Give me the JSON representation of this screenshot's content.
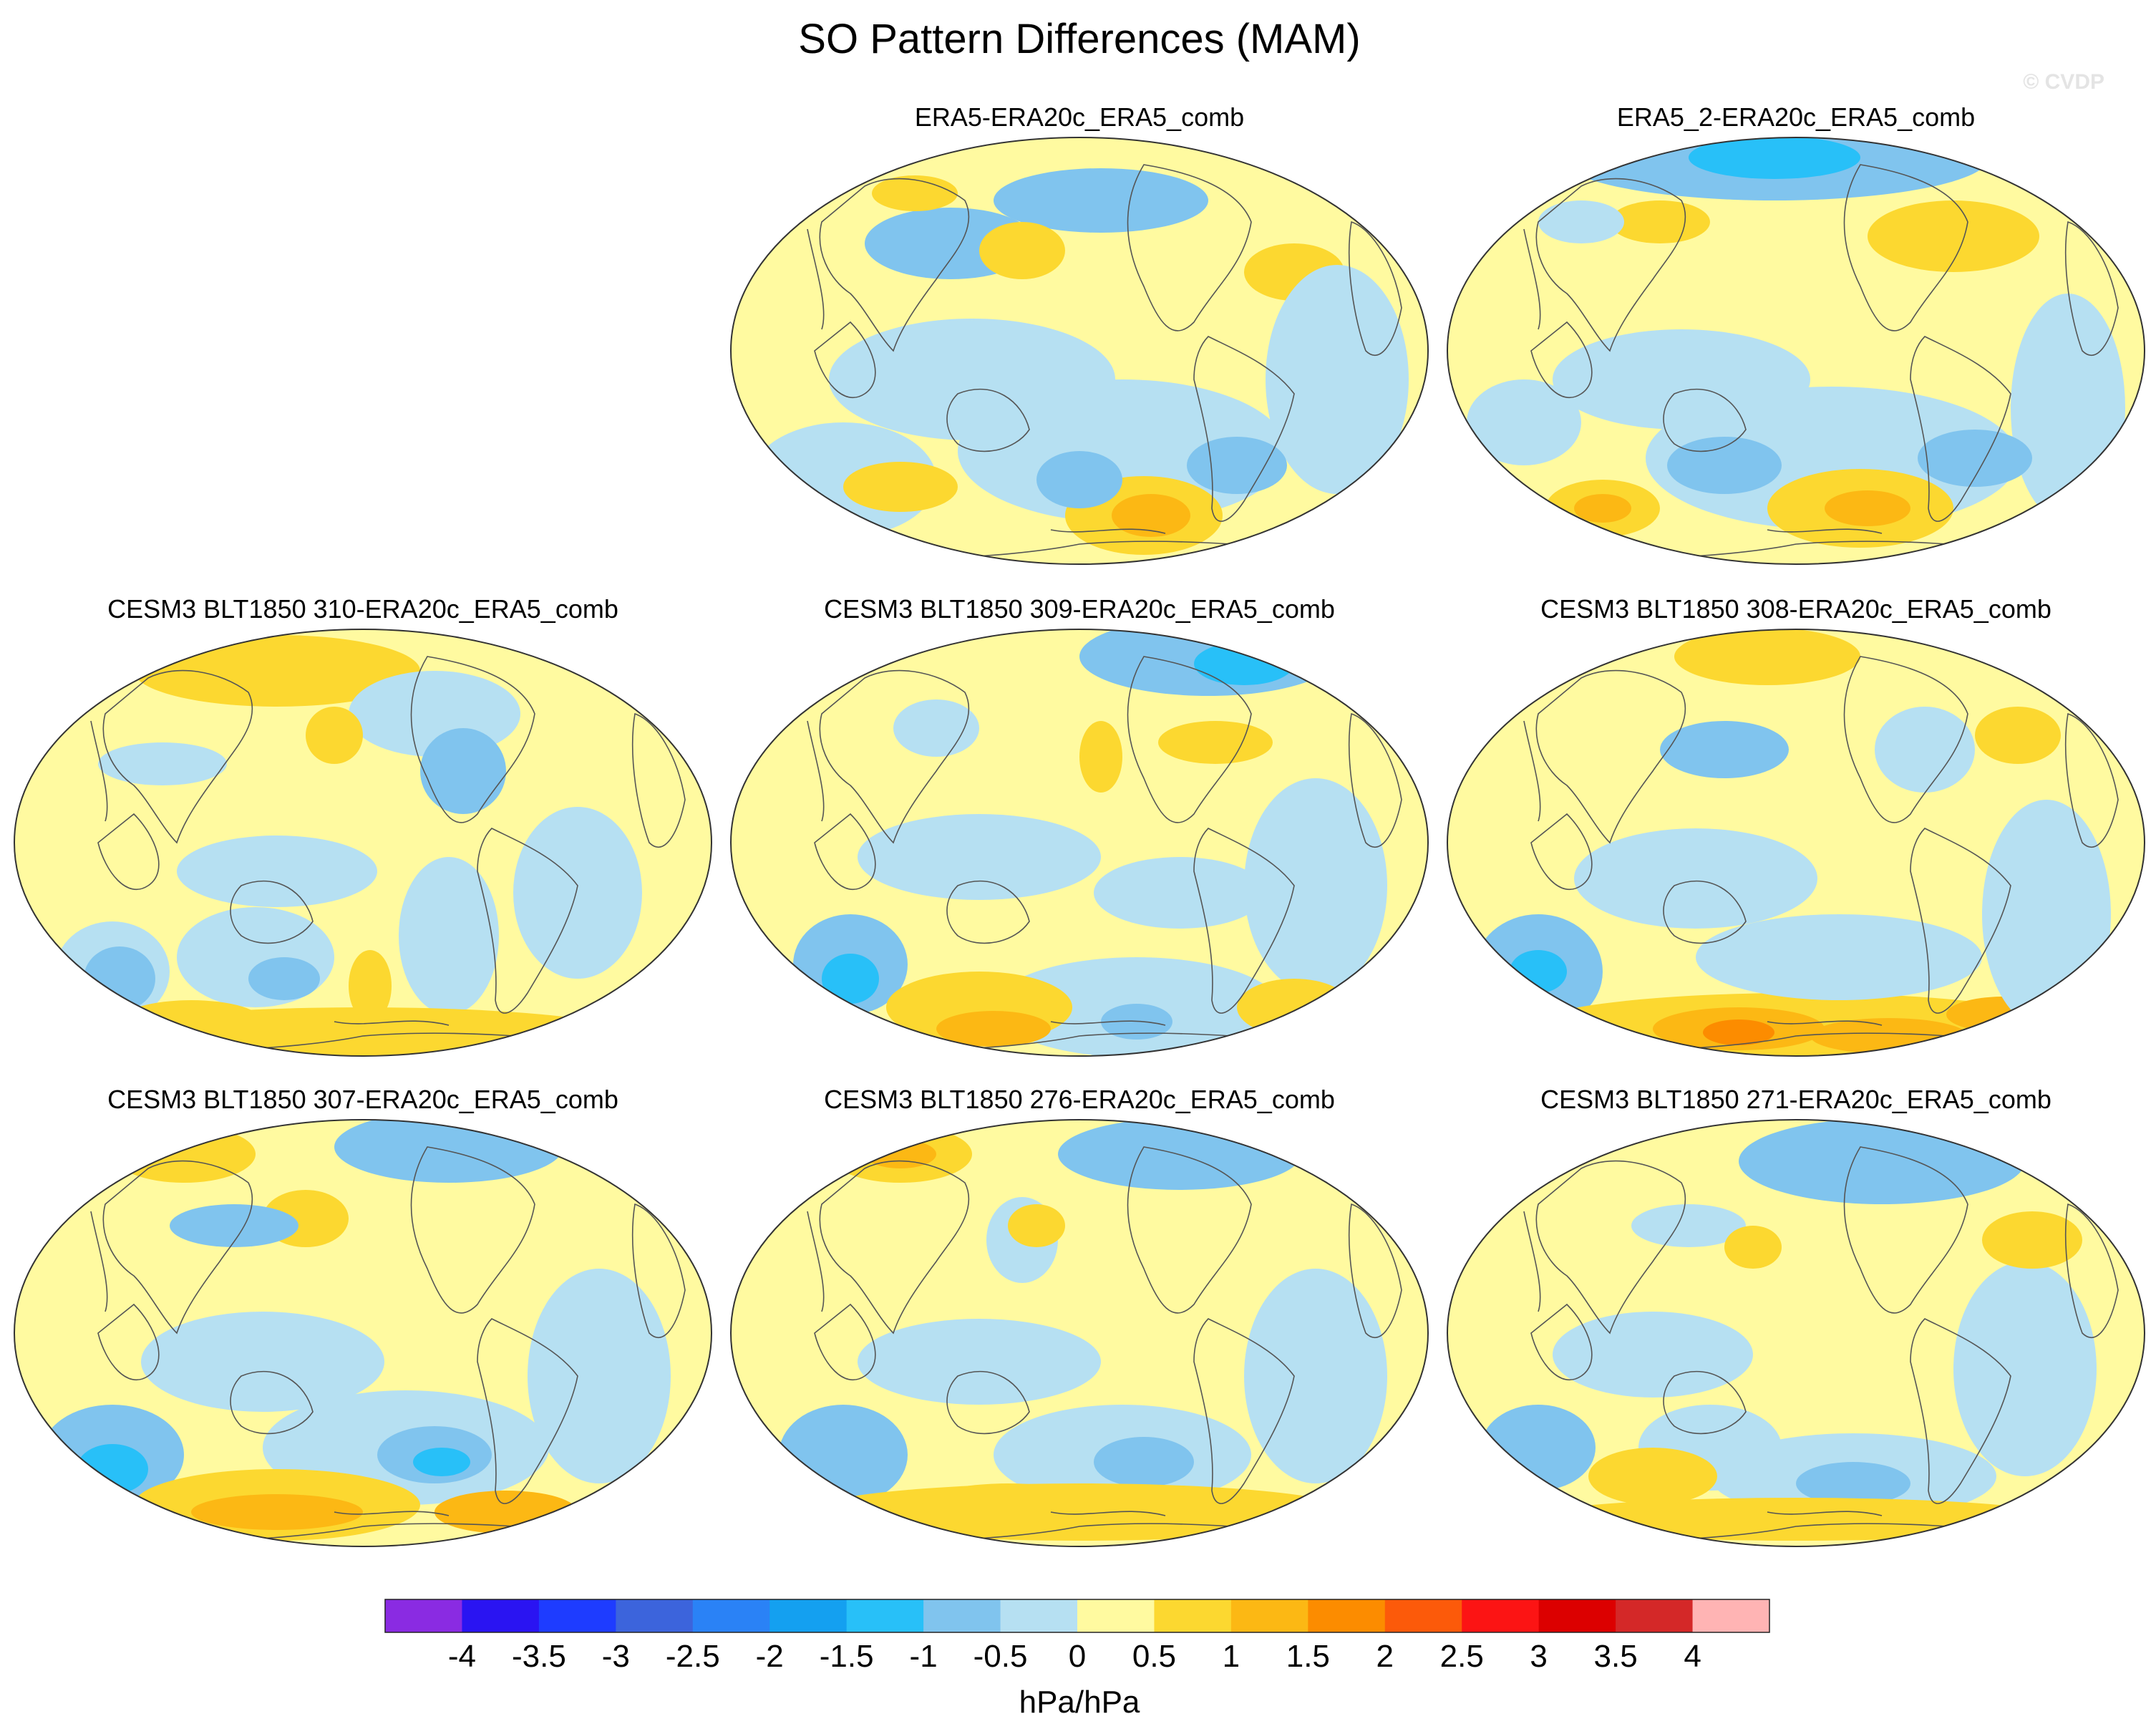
{
  "figure": {
    "title": "SO Pattern Differences (MAM)",
    "watermark": "© CVDP"
  },
  "panels": [
    {
      "id": "era5",
      "title": "ERA5-ERA20c_ERA5_comb"
    },
    {
      "id": "era5_2",
      "title": "ERA5_2-ERA20c_ERA5_comb"
    },
    {
      "id": "m310",
      "title": "CESM3 BLT1850 310-ERA20c_ERA5_comb"
    },
    {
      "id": "m309",
      "title": "CESM3 BLT1850 309-ERA20c_ERA5_comb"
    },
    {
      "id": "m308",
      "title": "CESM3 BLT1850 308-ERA20c_ERA5_comb"
    },
    {
      "id": "m307",
      "title": "CESM3 BLT1850 307-ERA20c_ERA5_comb"
    },
    {
      "id": "m276",
      "title": "CESM3 BLT1850 276-ERA20c_ERA5_comb"
    },
    {
      "id": "m271",
      "title": "CESM3 BLT1850 271-ERA20c_ERA5_comb"
    }
  ],
  "colorbar": {
    "units": "hPa/hPa",
    "tick_labels": [
      "-4",
      "-3.5",
      "-3",
      "-2.5",
      "-2",
      "-1.5",
      "-1",
      "-0.5",
      "0",
      "0.5",
      "1",
      "1.5",
      "2",
      "2.5",
      "3",
      "3.5",
      "4"
    ],
    "colors": [
      "#8a2be2",
      "#2a14f2",
      "#1e3cff",
      "#3c64dc",
      "#2a82f6",
      "#14a0f0",
      "#28c0f8",
      "#80c4ee",
      "#b6e0f2",
      "#fffaa0",
      "#fcd830",
      "#fcb814",
      "#fc8c00",
      "#fc5a0a",
      "#fc1414",
      "#dc0000",
      "#d42828",
      "#ffb4b4"
    ]
  },
  "palette": {
    "neutral_blue": "#b6e0f2",
    "neutral_yellow": "#fffaa0",
    "light_blue": "#80c4ee",
    "mid_blue": "#28c0f8",
    "yellow": "#fcd830",
    "orange": "#fcb814",
    "dark_orange": "#fc8c00",
    "coast": "#555555"
  }
}
